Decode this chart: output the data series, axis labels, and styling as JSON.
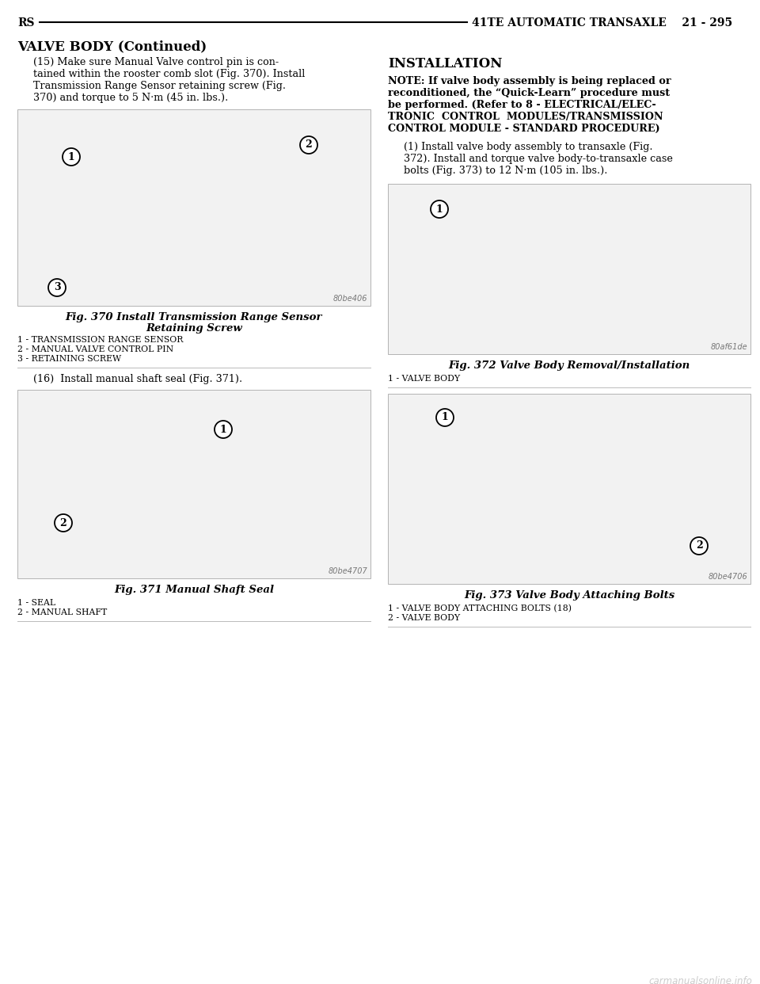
{
  "page_bg": "#ffffff",
  "header_left": "RS",
  "header_right": "41TE AUTOMATIC TRANSAXLE    21 - 295",
  "section_title": "VALVE BODY (Continued)",
  "para15_lines": [
    "(15) Make sure Manual Valve control pin is con-",
    "tained within the rooster comb slot (Fig. 370). Install",
    "Transmission Range Sensor retaining screw (Fig.",
    "370) and torque to 5 N·m (45 in. lbs.)."
  ],
  "fig370_caption_line1": "Fig. 370 Install Transmission Range Sensor",
  "fig370_caption_line2": "Retaining Screw",
  "fig370_labels": [
    "1 - TRANSMISSION RANGE SENSOR",
    "2 - MANUAL VALVE CONTROL PIN",
    "3 - RETAINING SCREW"
  ],
  "fig370_code": "80be406",
  "para16": "(16)  Install manual shaft seal (Fig. 371).",
  "fig371_caption": "Fig. 371 Manual Shaft Seal",
  "fig371_labels": [
    "1 - SEAL",
    "2 - MANUAL SHAFT"
  ],
  "fig371_code": "80be4707",
  "installation_title": "INSTALLATION",
  "note_lines": [
    "NOTE: If valve body assembly is being replaced or",
    "reconditioned, the “Quick-Learn” procedure must",
    "be performed. (Refer to 8 - ELECTRICAL/ELEC-",
    "TRONIC  CONTROL  MODULES/TRANSMISSION",
    "CONTROL MODULE - STANDARD PROCEDURE)"
  ],
  "para1r_lines": [
    "(1) Install valve body assembly to transaxle (Fig.",
    "372). Install and torque valve body-to-transaxle case",
    "bolts (Fig. 373) to 12 N·m (105 in. lbs.)."
  ],
  "fig372_caption": "Fig. 372 Valve Body Removal/Installation",
  "fig372_labels": [
    "1 - VALVE BODY"
  ],
  "fig372_code": "80af61de",
  "fig373_caption": "Fig. 373 Valve Body Attaching Bolts",
  "fig373_labels": [
    "1 - VALVE BODY ATTACHING BOLTS (18)",
    "2 - VALVE BODY"
  ],
  "fig373_code": "80be4706",
  "watermark": "carmanualsonline.info",
  "font_color": "#000000",
  "img_bg": "#f2f2f2",
  "img_border": "#999999"
}
